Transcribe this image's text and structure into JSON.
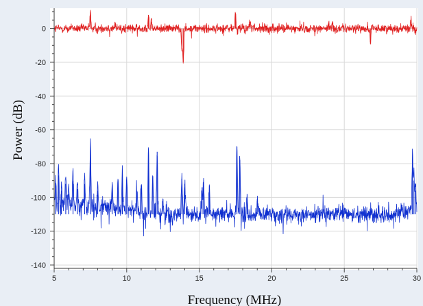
{
  "chart_data": {
    "type": "line",
    "title": "",
    "xlabel": "Frequency (MHz)",
    "ylabel": "Power (dB)",
    "xlim": [
      5,
      30
    ],
    "ylim": [
      -142,
      12
    ],
    "x_ticks": [
      5,
      10,
      15,
      20,
      25,
      30
    ],
    "y_ticks": [
      0,
      -20,
      -40,
      -60,
      -80,
      -100,
      -120,
      -140
    ],
    "grid": true,
    "legend": "none",
    "series": [
      {
        "color": "#e02020",
        "baseline": 0,
        "peaks": [
          {
            "x": 7.5,
            "y": 10
          },
          {
            "x": 11.5,
            "y": 8
          },
          {
            "x": 11.7,
            "y": 4
          },
          {
            "x": 13.8,
            "y": -12
          },
          {
            "x": 13.9,
            "y": -20
          },
          {
            "x": 17.5,
            "y": 9
          },
          {
            "x": 18.5,
            "y": 4
          },
          {
            "x": 24.2,
            "y": 4
          },
          {
            "x": 26.8,
            "y": -9
          },
          {
            "x": 29.6,
            "y": 5
          }
        ]
      },
      {
        "color": "#1030d0",
        "baseline": -110,
        "peaks": [
          {
            "x": 5.1,
            "y": -93
          },
          {
            "x": 5.3,
            "y": -87
          },
          {
            "x": 5.5,
            "y": -96
          },
          {
            "x": 5.8,
            "y": -92
          },
          {
            "x": 6.0,
            "y": -98
          },
          {
            "x": 6.3,
            "y": -90
          },
          {
            "x": 6.6,
            "y": -95
          },
          {
            "x": 7.1,
            "y": -92
          },
          {
            "x": 7.5,
            "y": -72
          },
          {
            "x": 8.0,
            "y": -96
          },
          {
            "x": 9.0,
            "y": -94
          },
          {
            "x": 9.4,
            "y": -90
          },
          {
            "x": 9.7,
            "y": -88
          },
          {
            "x": 10.0,
            "y": -91
          },
          {
            "x": 10.7,
            "y": -96
          },
          {
            "x": 11.0,
            "y": -93
          },
          {
            "x": 11.5,
            "y": -72
          },
          {
            "x": 11.8,
            "y": -88
          },
          {
            "x": 12.1,
            "y": -73
          },
          {
            "x": 12.5,
            "y": -101
          },
          {
            "x": 13.8,
            "y": -89
          },
          {
            "x": 14.0,
            "y": -92
          },
          {
            "x": 15.2,
            "y": -94
          },
          {
            "x": 15.3,
            "y": -93
          },
          {
            "x": 15.7,
            "y": -93
          },
          {
            "x": 17.6,
            "y": -70
          },
          {
            "x": 17.8,
            "y": -78
          },
          {
            "x": 18.3,
            "y": -98
          },
          {
            "x": 19.0,
            "y": -101
          },
          {
            "x": 21.8,
            "y": -110
          },
          {
            "x": 25.0,
            "y": -108
          },
          {
            "x": 29.7,
            "y": -80
          },
          {
            "x": 29.8,
            "y": -90
          },
          {
            "x": 29.9,
            "y": -96
          }
        ]
      }
    ]
  }
}
